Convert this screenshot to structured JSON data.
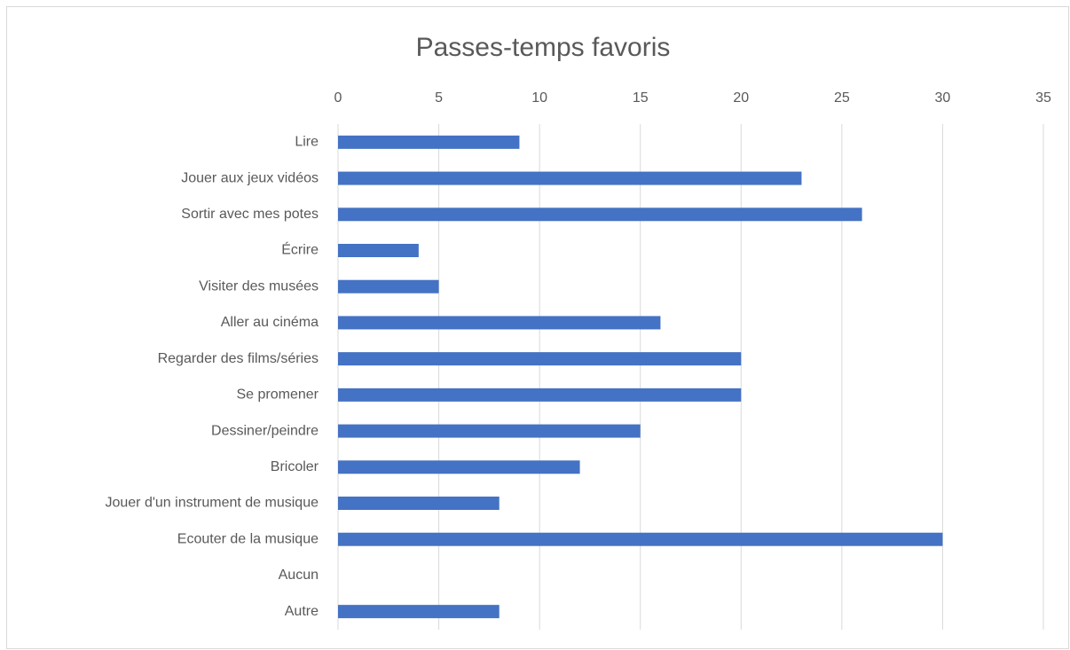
{
  "chart_data": {
    "type": "bar",
    "orientation": "horizontal",
    "title": "Passes-temps favoris",
    "categories": [
      "Lire",
      "Jouer aux jeux vidéos",
      "Sortir avec mes potes",
      "Écrire",
      "Visiter des musées",
      "Aller au cinéma",
      "Regarder des films/séries",
      "Se promener",
      "Dessiner/peindre",
      "Bricoler",
      "Jouer d'un instrument de musique",
      "Ecouter de la musique",
      "Aucun",
      "Autre"
    ],
    "values": [
      9,
      23,
      26,
      4,
      5,
      16,
      20,
      20,
      15,
      12,
      8,
      30,
      0,
      8
    ],
    "color": "#4472c4",
    "xlim": [
      0,
      35
    ],
    "xticks": [
      0,
      5,
      10,
      15,
      20,
      25,
      30,
      35
    ],
    "grid": true
  }
}
